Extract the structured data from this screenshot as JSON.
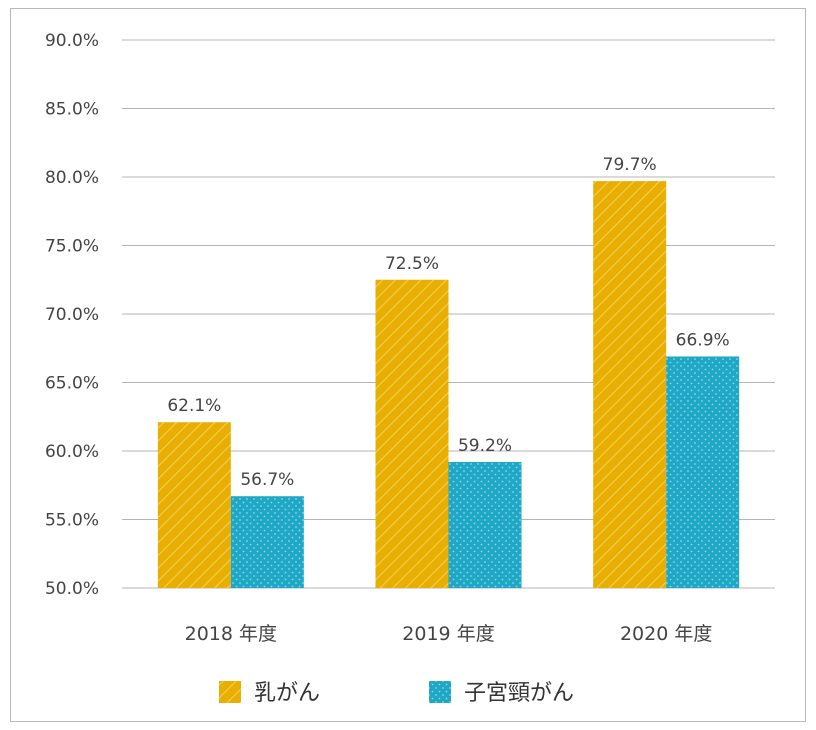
{
  "chart_data": {
    "type": "bar",
    "categories": [
      "2018 年度",
      "2019 年度",
      "2020 年度"
    ],
    "series": [
      {
        "name": "乳がん",
        "values": [
          62.1,
          72.5,
          79.7
        ],
        "value_labels": [
          "62.1%",
          "72.5%",
          "79.7%"
        ],
        "color": "#E8AE00",
        "pattern": "diagonal-stripes"
      },
      {
        "name": "子宮頸がん",
        "values": [
          56.7,
          59.2,
          66.9
        ],
        "value_labels": [
          "56.7%",
          "59.2%",
          "66.9%"
        ],
        "color": "#1FA7C6",
        "pattern": "dots"
      }
    ],
    "ylim": [
      50,
      90
    ],
    "yticks": [
      50,
      55,
      60,
      65,
      70,
      75,
      80,
      85,
      90
    ],
    "ytick_labels": [
      "50.0%",
      "55.0%",
      "60.0%",
      "65.0%",
      "70.0%",
      "75.0%",
      "80.0%",
      "85.0%",
      "90.0%"
    ],
    "grid": true,
    "legend_position": "bottom"
  }
}
